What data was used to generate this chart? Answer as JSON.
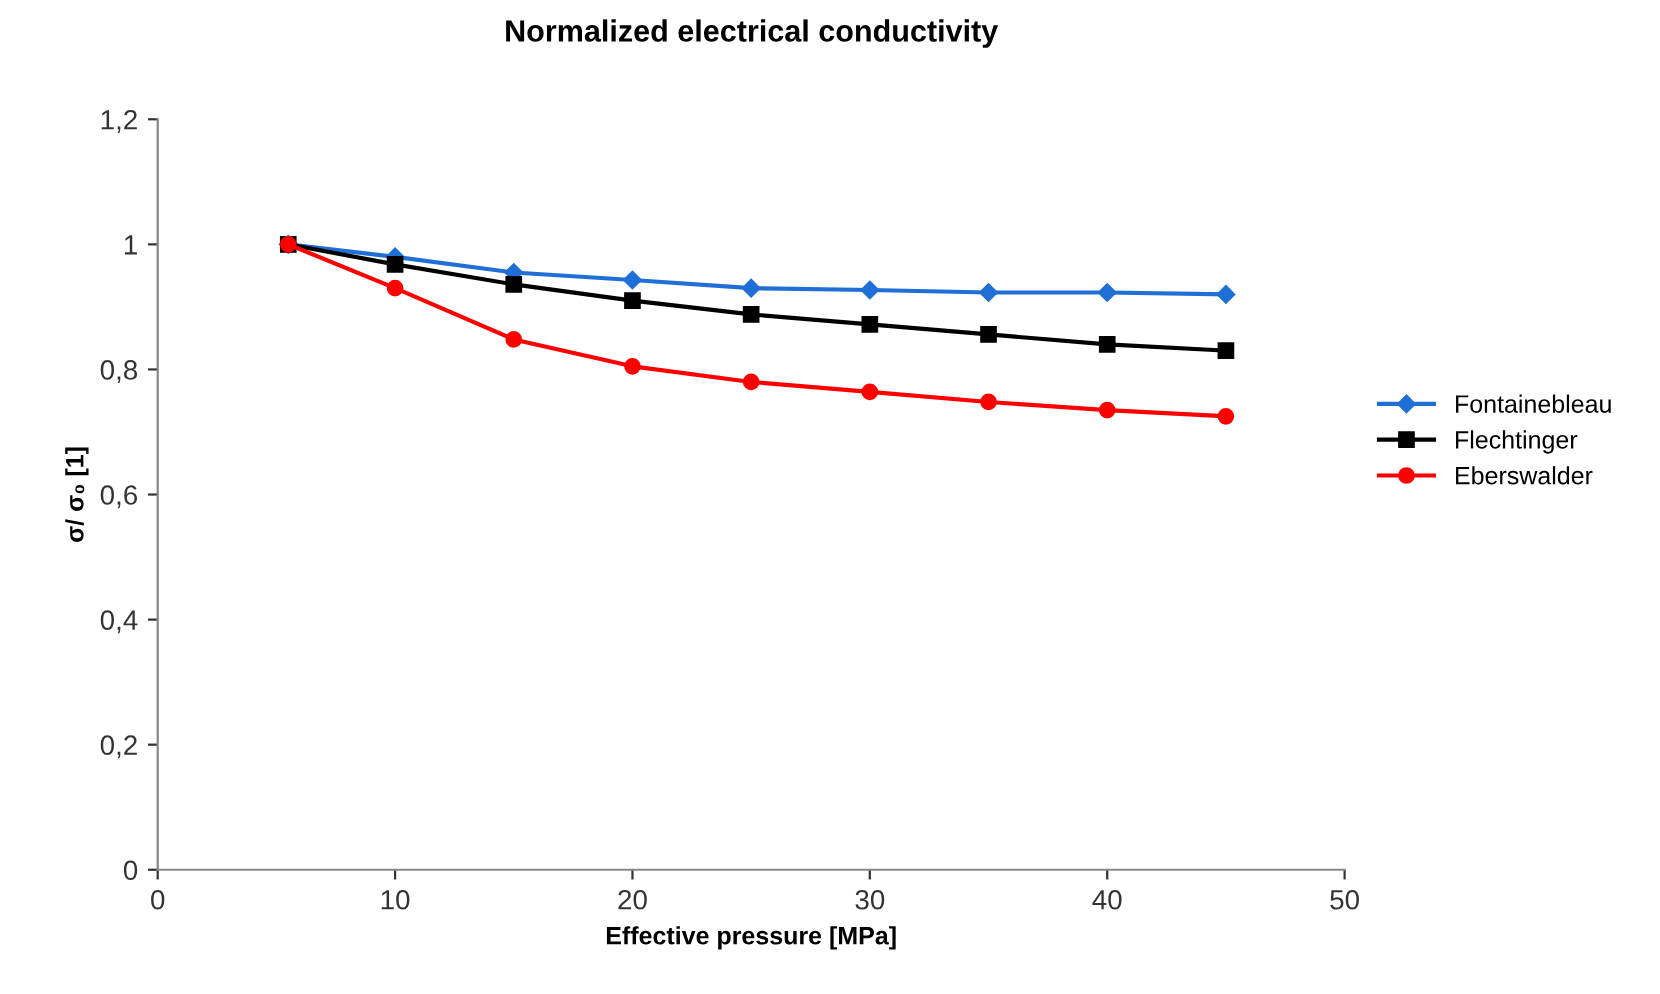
{
  "chart_data": {
    "type": "line",
    "title": "Normalized electrical conductivity",
    "xlabel": "Effective pressure [MPa]",
    "ylabel": "σ/ σ₀ [1]",
    "x": [
      5.5,
      10,
      15,
      20,
      25,
      30,
      35,
      40,
      45
    ],
    "series": [
      {
        "name": "Fontainebleau",
        "color": "#1f6fd6",
        "marker": "diamond",
        "values": [
          1.0,
          0.98,
          0.955,
          0.943,
          0.93,
          0.927,
          0.923,
          0.923,
          0.92
        ]
      },
      {
        "name": "Flechtinger",
        "color": "#000000",
        "marker": "square",
        "values": [
          1.0,
          0.968,
          0.936,
          0.91,
          0.888,
          0.872,
          0.856,
          0.84,
          0.83
        ]
      },
      {
        "name": "Eberswalder",
        "color": "#ff0000",
        "marker": "circle",
        "values": [
          1.0,
          0.93,
          0.848,
          0.805,
          0.78,
          0.764,
          0.748,
          0.735,
          0.725
        ]
      }
    ],
    "xlim": [
      0,
      50
    ],
    "xticks": [
      0,
      10,
      20,
      30,
      40,
      50
    ],
    "ylim": [
      0,
      1.2
    ],
    "yticks": [
      0,
      {
        "value": 0.2,
        "label": "0,2"
      },
      {
        "value": 0.4,
        "label": "0,4"
      },
      {
        "value": 0.6,
        "label": "0,6"
      },
      {
        "value": 0.8,
        "label": "0,8"
      },
      1,
      {
        "value": 1.2,
        "label": "1,2"
      }
    ],
    "grid": false,
    "legend": "right",
    "line_style": "solid"
  }
}
